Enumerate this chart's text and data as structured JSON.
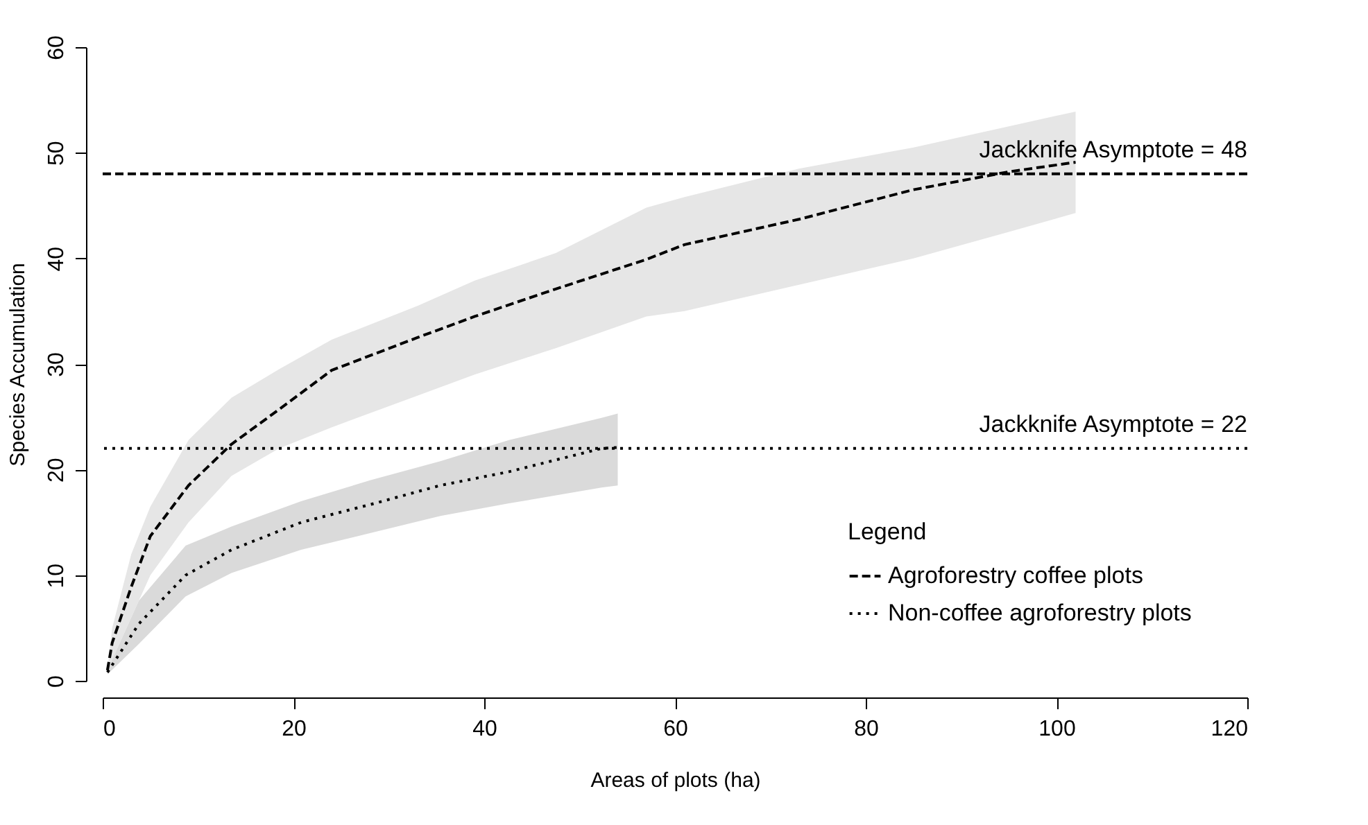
{
  "chart_data": {
    "type": "line",
    "xlabel": "Areas of plots (ha)",
    "ylabel": "Species Accumulation",
    "legend_title": "Legend",
    "legend": "bottom right",
    "grid": false,
    "marker": "none",
    "xlim": [
      0,
      120
    ],
    "xticks": [
      0,
      20,
      40,
      60,
      80,
      100,
      120
    ],
    "ylim": [
      0,
      60
    ],
    "yticks": [
      0,
      10,
      20,
      30,
      40,
      50,
      60
    ],
    "series": [
      {
        "name": "Agroforestry coffee plots",
        "color": "#000000",
        "line_style": "dashed",
        "x": [
          0.5,
          1,
          3,
          5,
          9,
          13.5,
          18.5,
          24,
          33,
          39,
          47.5,
          57,
          61,
          73,
          85,
          95,
          102
        ],
        "values": [
          1,
          3.6,
          8.9,
          13.7,
          18.5,
          22.4,
          25.7,
          29.4,
          32.5,
          34.5,
          37.1,
          39.9,
          41.3,
          43.7,
          46.5,
          48.2,
          49.1
        ],
        "lower": [
          1,
          2,
          6,
          10,
          15,
          19.4,
          22,
          24,
          27,
          29,
          31.5,
          34.5,
          35,
          37.5,
          40,
          42.5,
          44.3
        ],
        "upper": [
          1,
          5,
          12,
          16.5,
          22.8,
          26.8,
          29.5,
          32.3,
          35.5,
          37.9,
          40.5,
          44.8,
          45.8,
          48.5,
          50.5,
          52.5,
          53.9
        ]
      },
      {
        "name": "Non-coffee agroforestry plots",
        "color": "#000000",
        "line_style": "dotted",
        "x": [
          0.5,
          3.8,
          8.7,
          13.5,
          20.8,
          28.1,
          35.4,
          42.6,
          52.3,
          54
        ],
        "values": [
          0.8,
          5.4,
          10,
          12.4,
          15,
          16.7,
          18.5,
          19.8,
          22,
          22.1
        ],
        "lower": [
          0.6,
          3.5,
          8,
          10.2,
          12.4,
          14,
          15.6,
          16.8,
          18.3,
          18.5
        ],
        "upper": [
          1,
          7.6,
          12.8,
          14.6,
          17,
          19,
          20.8,
          22.8,
          24.9,
          25.3
        ]
      }
    ],
    "ref_lines": [
      {
        "axis": "y",
        "value": 48,
        "label": "Jackknife Asymptote = 48",
        "color": "#000000",
        "line_style": "dashed"
      },
      {
        "axis": "y",
        "value": 22,
        "label": "Jackknife Asymptote = 22",
        "color": "#000000",
        "line_style": "dotted"
      }
    ]
  }
}
